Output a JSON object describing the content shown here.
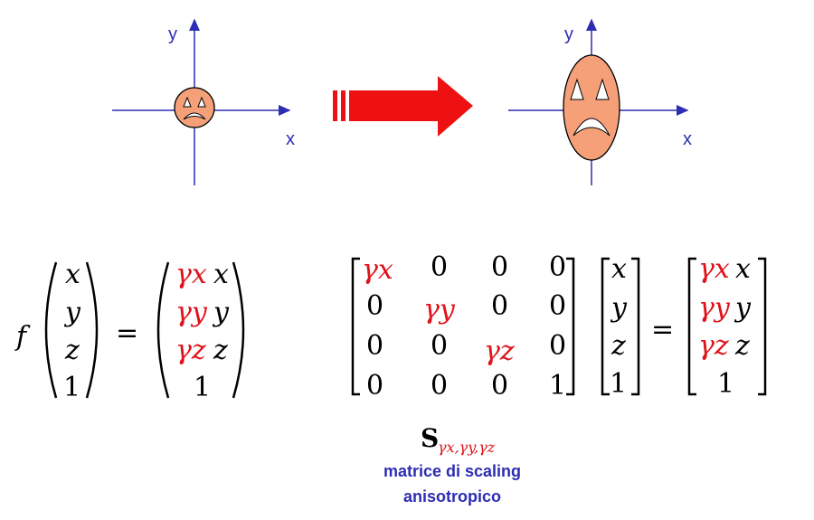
{
  "diagram": {
    "before": {
      "x_label": "x",
      "y_label": "y"
    },
    "after": {
      "x_label": "x",
      "y_label": "y"
    }
  },
  "formula": {
    "f": "f",
    "equals": "=",
    "input_vector": [
      "x",
      "y",
      "z",
      "1"
    ],
    "gamma_x": "γx",
    "gamma_y": "γy",
    "gamma_z": "γz",
    "output_vector": [
      {
        "coef": "γx",
        "var": "x"
      },
      {
        "coef": "γy",
        "var": "y"
      },
      {
        "coef": "γz",
        "var": "z"
      },
      {
        "coef": "",
        "var": "1"
      }
    ]
  },
  "matrix": {
    "rows": [
      [
        "γx",
        "0",
        "0",
        "0"
      ],
      [
        "0",
        "γy",
        "0",
        "0"
      ],
      [
        "0",
        "0",
        "γz",
        "0"
      ],
      [
        "0",
        "0",
        "0",
        "1"
      ]
    ],
    "vector": [
      "x",
      "y",
      "z",
      "1"
    ],
    "equals": "=",
    "result": [
      {
        "coef": "γx",
        "var": "x"
      },
      {
        "coef": "γy",
        "var": "y"
      },
      {
        "coef": "γz",
        "var": "z"
      },
      {
        "coef": "",
        "var": "1"
      }
    ]
  },
  "caption": {
    "symbol": "S",
    "subscript": "γx,γy,γz",
    "line1": "matrice di scaling",
    "line2": "anisotropico"
  },
  "colors": {
    "axis": "#2d2db4",
    "face_fill": "#f5a078",
    "arrow": "#ee1111",
    "accent_text": "#e0121a"
  }
}
